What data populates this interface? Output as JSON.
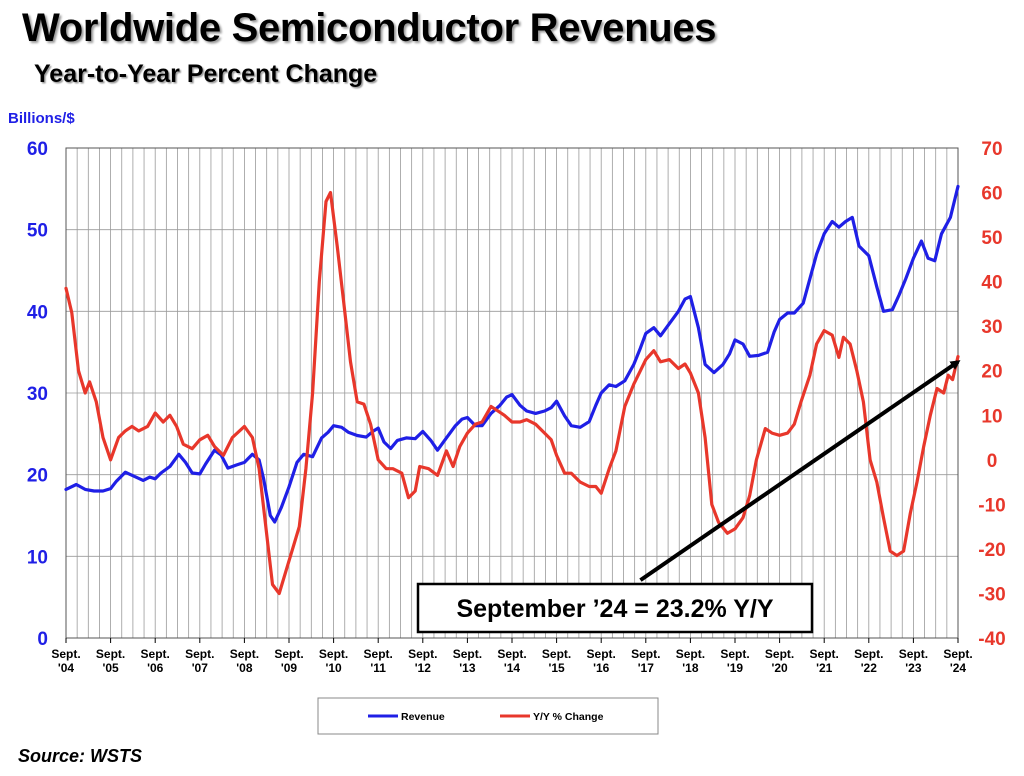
{
  "chart_data": {
    "type": "line",
    "title": "Worldwide Semiconductor Revenues",
    "subtitle": "Year-to-Year Percent Change",
    "source": "Source: WSTS",
    "y_left_label": "Billions/$",
    "y_left_range": [
      0,
      60
    ],
    "y_left_ticks": [
      0,
      10,
      20,
      30,
      40,
      50,
      60
    ],
    "y_right_range": [
      -40,
      70
    ],
    "y_right_ticks": [
      -40,
      -30,
      -20,
      -10,
      0,
      10,
      20,
      30,
      40,
      50,
      60,
      70
    ],
    "x_range": [
      2004.67,
      2024.67
    ],
    "x_ticks": [
      {
        "x": 2004.67,
        "line1": "Sept.",
        "line2": "'04"
      },
      {
        "x": 2005.67,
        "line1": "Sept.",
        "line2": "'05"
      },
      {
        "x": 2006.67,
        "line1": "Sept.",
        "line2": "'06"
      },
      {
        "x": 2007.67,
        "line1": "Sept.",
        "line2": "'07"
      },
      {
        "x": 2008.67,
        "line1": "Sept.",
        "line2": "'08"
      },
      {
        "x": 2009.67,
        "line1": "Sept.",
        "line2": "'09"
      },
      {
        "x": 2010.67,
        "line1": "Sept.",
        "line2": "'10"
      },
      {
        "x": 2011.67,
        "line1": "Sept.",
        "line2": "'11"
      },
      {
        "x": 2012.67,
        "line1": "Sept.",
        "line2": "'12"
      },
      {
        "x": 2013.67,
        "line1": "Sept.",
        "line2": "'13"
      },
      {
        "x": 2014.67,
        "line1": "Sept.",
        "line2": "'14"
      },
      {
        "x": 2015.67,
        "line1": "Sept.",
        "line2": "'15"
      },
      {
        "x": 2016.67,
        "line1": "Sept.",
        "line2": "'16"
      },
      {
        "x": 2017.67,
        "line1": "Sept.",
        "line2": "'17"
      },
      {
        "x": 2018.67,
        "line1": "Sept.",
        "line2": "'18"
      },
      {
        "x": 2019.67,
        "line1": "Sept.",
        "line2": "'19"
      },
      {
        "x": 2020.67,
        "line1": "Sept.",
        "line2": "'20"
      },
      {
        "x": 2021.67,
        "line1": "Sept.",
        "line2": "'21"
      },
      {
        "x": 2022.67,
        "line1": "Sept.",
        "line2": "'22"
      },
      {
        "x": 2023.67,
        "line1": "Sept.",
        "line2": "'23"
      },
      {
        "x": 2024.67,
        "line1": "Sept.",
        "line2": "'24"
      }
    ],
    "series": [
      {
        "name": "Revenue",
        "axis": "left",
        "color": "#1f1fe6",
        "points": [
          [
            2004.67,
            18.2
          ],
          [
            2004.9,
            18.8
          ],
          [
            2005.1,
            18.2
          ],
          [
            2005.3,
            18.0
          ],
          [
            2005.5,
            18.0
          ],
          [
            2005.67,
            18.3
          ],
          [
            2005.8,
            19.2
          ],
          [
            2006.0,
            20.3
          ],
          [
            2006.2,
            19.8
          ],
          [
            2006.4,
            19.3
          ],
          [
            2006.55,
            19.7
          ],
          [
            2006.67,
            19.5
          ],
          [
            2006.8,
            20.2
          ],
          [
            2007.0,
            21.0
          ],
          [
            2007.2,
            22.5
          ],
          [
            2007.35,
            21.5
          ],
          [
            2007.5,
            20.2
          ],
          [
            2007.67,
            20.1
          ],
          [
            2007.8,
            21.3
          ],
          [
            2008.0,
            23.0
          ],
          [
            2008.15,
            22.4
          ],
          [
            2008.3,
            20.8
          ],
          [
            2008.5,
            21.2
          ],
          [
            2008.67,
            21.5
          ],
          [
            2008.85,
            22.5
          ],
          [
            2009.0,
            21.8
          ],
          [
            2009.1,
            19.5
          ],
          [
            2009.25,
            15.0
          ],
          [
            2009.35,
            14.2
          ],
          [
            2009.5,
            16.0
          ],
          [
            2009.67,
            18.5
          ],
          [
            2009.85,
            21.5
          ],
          [
            2010.0,
            22.5
          ],
          [
            2010.2,
            22.2
          ],
          [
            2010.4,
            24.5
          ],
          [
            2010.55,
            25.2
          ],
          [
            2010.67,
            26.0
          ],
          [
            2010.85,
            25.8
          ],
          [
            2011.0,
            25.2
          ],
          [
            2011.2,
            24.8
          ],
          [
            2011.4,
            24.6
          ],
          [
            2011.55,
            25.3
          ],
          [
            2011.67,
            25.7
          ],
          [
            2011.8,
            24.0
          ],
          [
            2011.95,
            23.2
          ],
          [
            2012.1,
            24.2
          ],
          [
            2012.3,
            24.5
          ],
          [
            2012.5,
            24.4
          ],
          [
            2012.67,
            25.3
          ],
          [
            2012.85,
            24.2
          ],
          [
            2013.0,
            23.0
          ],
          [
            2013.2,
            24.5
          ],
          [
            2013.4,
            26.0
          ],
          [
            2013.55,
            26.8
          ],
          [
            2013.67,
            27.0
          ],
          [
            2013.85,
            26.0
          ],
          [
            2014.0,
            26.0
          ],
          [
            2014.2,
            27.5
          ],
          [
            2014.4,
            28.5
          ],
          [
            2014.55,
            29.5
          ],
          [
            2014.67,
            29.8
          ],
          [
            2014.85,
            28.5
          ],
          [
            2015.0,
            27.8
          ],
          [
            2015.2,
            27.5
          ],
          [
            2015.4,
            27.8
          ],
          [
            2015.55,
            28.2
          ],
          [
            2015.67,
            29.0
          ],
          [
            2015.85,
            27.2
          ],
          [
            2016.0,
            26.0
          ],
          [
            2016.2,
            25.8
          ],
          [
            2016.4,
            26.5
          ],
          [
            2016.55,
            28.5
          ],
          [
            2016.67,
            30.0
          ],
          [
            2016.85,
            31.0
          ],
          [
            2017.0,
            30.8
          ],
          [
            2017.2,
            31.5
          ],
          [
            2017.4,
            33.5
          ],
          [
            2017.55,
            35.5
          ],
          [
            2017.67,
            37.3
          ],
          [
            2017.85,
            38.0
          ],
          [
            2018.0,
            37.0
          ],
          [
            2018.2,
            38.5
          ],
          [
            2018.4,
            40.0
          ],
          [
            2018.55,
            41.5
          ],
          [
            2018.67,
            41.8
          ],
          [
            2018.85,
            38.0
          ],
          [
            2019.0,
            33.5
          ],
          [
            2019.2,
            32.5
          ],
          [
            2019.4,
            33.5
          ],
          [
            2019.55,
            34.8
          ],
          [
            2019.67,
            36.5
          ],
          [
            2019.85,
            36.0
          ],
          [
            2020.0,
            34.5
          ],
          [
            2020.2,
            34.6
          ],
          [
            2020.4,
            35.0
          ],
          [
            2020.55,
            37.5
          ],
          [
            2020.67,
            39.0
          ],
          [
            2020.85,
            39.8
          ],
          [
            2021.0,
            39.8
          ],
          [
            2021.2,
            41.0
          ],
          [
            2021.35,
            44.0
          ],
          [
            2021.5,
            47.0
          ],
          [
            2021.67,
            49.5
          ],
          [
            2021.85,
            51.0
          ],
          [
            2022.0,
            50.3
          ],
          [
            2022.15,
            51.0
          ],
          [
            2022.3,
            51.5
          ],
          [
            2022.45,
            48.0
          ],
          [
            2022.67,
            46.8
          ],
          [
            2022.85,
            43.0
          ],
          [
            2023.0,
            40.0
          ],
          [
            2023.2,
            40.2
          ],
          [
            2023.35,
            42.0
          ],
          [
            2023.5,
            44.0
          ],
          [
            2023.67,
            46.5
          ],
          [
            2023.85,
            48.6
          ],
          [
            2024.0,
            46.5
          ],
          [
            2024.15,
            46.2
          ],
          [
            2024.3,
            49.5
          ],
          [
            2024.5,
            51.5
          ],
          [
            2024.67,
            55.3
          ]
        ]
      },
      {
        "name": "Y/Y % Change",
        "axis": "right",
        "color": "#e8372b",
        "points": [
          [
            2004.67,
            38.5
          ],
          [
            2004.8,
            33.0
          ],
          [
            2004.95,
            20.0
          ],
          [
            2005.1,
            15.0
          ],
          [
            2005.2,
            17.5
          ],
          [
            2005.35,
            13.0
          ],
          [
            2005.5,
            5.0
          ],
          [
            2005.67,
            0.0
          ],
          [
            2005.85,
            5.0
          ],
          [
            2006.0,
            6.5
          ],
          [
            2006.15,
            7.5
          ],
          [
            2006.3,
            6.5
          ],
          [
            2006.5,
            7.5
          ],
          [
            2006.67,
            10.5
          ],
          [
            2006.85,
            8.5
          ],
          [
            2007.0,
            10.0
          ],
          [
            2007.15,
            7.5
          ],
          [
            2007.3,
            3.5
          ],
          [
            2007.5,
            2.5
          ],
          [
            2007.67,
            4.5
          ],
          [
            2007.85,
            5.5
          ],
          [
            2008.0,
            3.0
          ],
          [
            2008.2,
            1.0
          ],
          [
            2008.4,
            5.0
          ],
          [
            2008.67,
            7.5
          ],
          [
            2008.85,
            5.0
          ],
          [
            2009.0,
            -2.0
          ],
          [
            2009.15,
            -15.0
          ],
          [
            2009.3,
            -28.0
          ],
          [
            2009.45,
            -30.0
          ],
          [
            2009.6,
            -25.0
          ],
          [
            2009.75,
            -20.0
          ],
          [
            2009.9,
            -15.0
          ],
          [
            2010.05,
            -2.0
          ],
          [
            2010.2,
            15.0
          ],
          [
            2010.35,
            40.0
          ],
          [
            2010.5,
            58.0
          ],
          [
            2010.6,
            60.0
          ],
          [
            2010.75,
            48.0
          ],
          [
            2010.9,
            35.0
          ],
          [
            2011.05,
            22.0
          ],
          [
            2011.2,
            13.0
          ],
          [
            2011.35,
            12.5
          ],
          [
            2011.5,
            8.0
          ],
          [
            2011.67,
            0.0
          ],
          [
            2011.85,
            -2.0
          ],
          [
            2012.0,
            -2.0
          ],
          [
            2012.2,
            -3.0
          ],
          [
            2012.35,
            -8.5
          ],
          [
            2012.5,
            -7.0
          ],
          [
            2012.6,
            -1.5
          ],
          [
            2012.8,
            -2.0
          ],
          [
            2013.0,
            -3.5
          ],
          [
            2013.2,
            2.0
          ],
          [
            2013.35,
            -1.5
          ],
          [
            2013.5,
            3.0
          ],
          [
            2013.67,
            6.0
          ],
          [
            2013.85,
            8.0
          ],
          [
            2014.0,
            8.5
          ],
          [
            2014.2,
            12.0
          ],
          [
            2014.35,
            11.0
          ],
          [
            2014.5,
            10.0
          ],
          [
            2014.67,
            8.5
          ],
          [
            2014.85,
            8.5
          ],
          [
            2015.0,
            9.0
          ],
          [
            2015.2,
            8.0
          ],
          [
            2015.4,
            6.0
          ],
          [
            2015.55,
            4.5
          ],
          [
            2015.67,
            1.0
          ],
          [
            2015.85,
            -3.0
          ],
          [
            2016.0,
            -3.0
          ],
          [
            2016.2,
            -5.0
          ],
          [
            2016.4,
            -6.0
          ],
          [
            2016.55,
            -6.0
          ],
          [
            2016.67,
            -7.5
          ],
          [
            2016.85,
            -2.0
          ],
          [
            2017.0,
            2.0
          ],
          [
            2017.2,
            12.0
          ],
          [
            2017.4,
            17.0
          ],
          [
            2017.55,
            20.0
          ],
          [
            2017.67,
            22.5
          ],
          [
            2017.85,
            24.5
          ],
          [
            2018.0,
            22.0
          ],
          [
            2018.2,
            22.5
          ],
          [
            2018.4,
            20.5
          ],
          [
            2018.55,
            21.5
          ],
          [
            2018.67,
            19.5
          ],
          [
            2018.85,
            15.0
          ],
          [
            2019.0,
            5.0
          ],
          [
            2019.15,
            -10.0
          ],
          [
            2019.3,
            -14.0
          ],
          [
            2019.5,
            -16.5
          ],
          [
            2019.67,
            -15.5
          ],
          [
            2019.85,
            -13.0
          ],
          [
            2020.0,
            -8.0
          ],
          [
            2020.15,
            0.0
          ],
          [
            2020.35,
            7.0
          ],
          [
            2020.5,
            6.0
          ],
          [
            2020.67,
            5.5
          ],
          [
            2020.85,
            6.0
          ],
          [
            2021.0,
            8.0
          ],
          [
            2021.15,
            13.0
          ],
          [
            2021.35,
            19.0
          ],
          [
            2021.5,
            26.0
          ],
          [
            2021.67,
            29.0
          ],
          [
            2021.85,
            28.0
          ],
          [
            2022.0,
            23.0
          ],
          [
            2022.1,
            27.5
          ],
          [
            2022.25,
            26.0
          ],
          [
            2022.4,
            20.0
          ],
          [
            2022.55,
            13.0
          ],
          [
            2022.7,
            0.0
          ],
          [
            2022.85,
            -5.0
          ],
          [
            2023.0,
            -13.0
          ],
          [
            2023.15,
            -20.5
          ],
          [
            2023.3,
            -21.5
          ],
          [
            2023.45,
            -20.5
          ],
          [
            2023.6,
            -12.0
          ],
          [
            2023.75,
            -5.0
          ],
          [
            2023.9,
            3.0
          ],
          [
            2024.05,
            10.0
          ],
          [
            2024.2,
            16.0
          ],
          [
            2024.35,
            15.0
          ],
          [
            2024.45,
            19.0
          ],
          [
            2024.55,
            18.0
          ],
          [
            2024.67,
            23.2
          ]
        ]
      }
    ],
    "legend": [
      {
        "label": "Revenue",
        "color": "#1f1fe6"
      },
      {
        "label": "Y/Y % Change",
        "color": "#e8372b"
      }
    ],
    "annotation": {
      "text": "September ’24 = 23.2% Y/Y",
      "arrow_from": [
        2017.55,
        -27.0
      ],
      "arrow_to": [
        2024.67,
        22.0
      ]
    }
  },
  "colors": {
    "left_axis": "#1f1fe6",
    "right_axis": "#e8372b",
    "grid": "#9a9a9a"
  }
}
